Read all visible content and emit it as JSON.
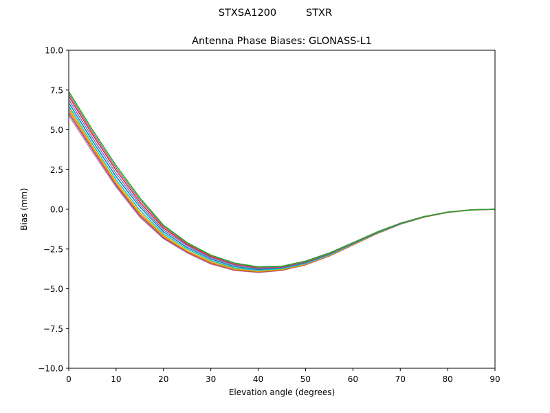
{
  "figure": {
    "suptitle_left": "STXSA1200",
    "suptitle_right": "STXR"
  },
  "chart_data": {
    "type": "line",
    "title": "Antenna Phase Biases: GLONASS-L1",
    "xlabel": "Elevation angle (degrees)",
    "ylabel": "Bias (mm)",
    "xlim": [
      0,
      90
    ],
    "ylim": [
      -10,
      10
    ],
    "xticks": [
      0,
      10,
      20,
      30,
      40,
      50,
      60,
      70,
      80,
      90
    ],
    "yticks": [
      -10.0,
      -7.5,
      -5.0,
      -2.5,
      0.0,
      2.5,
      5.0,
      7.5,
      10.0
    ],
    "ytick_labels": [
      "−10.0",
      "−7.5",
      "−5.0",
      "−2.5",
      "0.0",
      "2.5",
      "5.0",
      "7.5",
      "10.0"
    ],
    "grid": false,
    "legend": "none",
    "x": [
      0,
      5,
      10,
      15,
      20,
      25,
      30,
      35,
      40,
      45,
      50,
      55,
      60,
      65,
      70,
      75,
      80,
      85,
      90
    ],
    "series": [
      {
        "color": "#e377c2",
        "values": [
          5.9,
          3.6,
          1.4,
          -0.5,
          -1.85,
          -2.75,
          -3.45,
          -3.85,
          -3.98,
          -3.85,
          -3.5,
          -2.95,
          -2.25,
          -1.55,
          -0.95,
          -0.5,
          -0.2,
          -0.05,
          0.0
        ]
      },
      {
        "color": "#8c564b",
        "values": [
          6.05,
          3.75,
          1.5,
          -0.4,
          -1.8,
          -2.7,
          -3.4,
          -3.82,
          -3.95,
          -3.83,
          -3.48,
          -2.93,
          -2.24,
          -1.54,
          -0.94,
          -0.5,
          -0.2,
          -0.05,
          0.0
        ]
      },
      {
        "color": "#ff7f0e",
        "values": [
          6.2,
          3.85,
          1.6,
          -0.3,
          -1.72,
          -2.65,
          -3.36,
          -3.78,
          -3.92,
          -3.8,
          -3.46,
          -2.91,
          -2.22,
          -1.53,
          -0.93,
          -0.49,
          -0.2,
          -0.05,
          0.0
        ]
      },
      {
        "color": "#bcbd22",
        "values": [
          6.35,
          3.95,
          1.7,
          -0.2,
          -1.65,
          -2.6,
          -3.3,
          -3.74,
          -3.88,
          -3.77,
          -3.43,
          -2.89,
          -2.2,
          -1.52,
          -0.93,
          -0.49,
          -0.19,
          -0.05,
          0.0
        ]
      },
      {
        "color": "#17becf",
        "values": [
          6.5,
          4.1,
          1.85,
          -0.05,
          -1.55,
          -2.5,
          -3.22,
          -3.68,
          -3.84,
          -3.73,
          -3.4,
          -2.86,
          -2.18,
          -1.5,
          -0.92,
          -0.48,
          -0.19,
          -0.04,
          0.0
        ]
      },
      {
        "color": "#1f77b4",
        "values": [
          6.7,
          4.3,
          2.05,
          0.15,
          -1.42,
          -2.4,
          -3.13,
          -3.6,
          -3.78,
          -3.69,
          -3.36,
          -2.83,
          -2.16,
          -1.49,
          -0.91,
          -0.48,
          -0.19,
          -0.04,
          0.0
        ]
      },
      {
        "color": "#9467bd",
        "values": [
          6.9,
          4.5,
          2.25,
          0.3,
          -1.3,
          -2.3,
          -3.05,
          -3.52,
          -3.72,
          -3.65,
          -3.32,
          -2.8,
          -2.14,
          -1.47,
          -0.9,
          -0.47,
          -0.18,
          -0.04,
          0.0
        ]
      },
      {
        "color": "#d62728",
        "values": [
          7.1,
          4.7,
          2.45,
          0.45,
          -1.18,
          -2.22,
          -2.98,
          -3.46,
          -3.68,
          -3.62,
          -3.3,
          -2.78,
          -2.12,
          -1.46,
          -0.89,
          -0.47,
          -0.18,
          -0.04,
          0.0
        ]
      },
      {
        "color": "#7f7f7f",
        "values": [
          7.25,
          4.85,
          2.6,
          0.6,
          -1.08,
          -2.15,
          -2.92,
          -3.42,
          -3.65,
          -3.6,
          -3.28,
          -2.77,
          -2.11,
          -1.45,
          -0.88,
          -0.46,
          -0.18,
          -0.04,
          0.0
        ]
      },
      {
        "color": "#2ca02c",
        "values": [
          7.4,
          5.0,
          2.75,
          0.72,
          -1.0,
          -2.1,
          -2.88,
          -3.38,
          -3.62,
          -3.58,
          -3.26,
          -2.75,
          -2.1,
          -1.44,
          -0.88,
          -0.46,
          -0.18,
          -0.04,
          0.0
        ]
      }
    ]
  }
}
